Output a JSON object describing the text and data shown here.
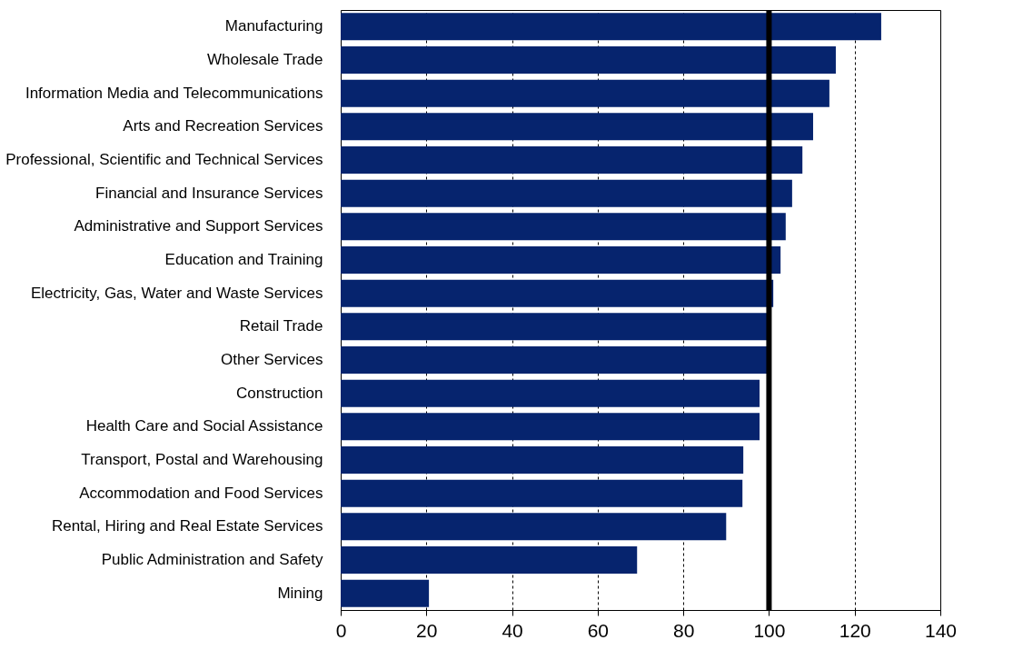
{
  "chart_data": {
    "type": "bar",
    "orientation": "horizontal",
    "categories": [
      "Manufacturing",
      "Wholesale Trade",
      "Information Media and Telecommunications",
      "Arts and Recreation Services",
      "Professional, Scientific and Technical Services",
      "Financial and Insurance Services",
      "Administrative and Support Services",
      "Education and Training",
      "Electricity, Gas, Water and Waste Services",
      "Retail Trade",
      "Other Services",
      "Construction",
      "Health Care and Social Assistance",
      "Transport, Postal and Warehousing",
      "Accommodation and Food Services",
      "Rental, Hiring and Real Estate Services",
      "Public Administration and Safety",
      "Mining"
    ],
    "values": [
      126.2,
      115.6,
      114.1,
      110.3,
      107.8,
      105.4,
      103.9,
      102.7,
      101,
      99.8,
      100,
      97.8,
      97.8,
      94,
      93.8,
      90,
      69.2,
      20.6
    ],
    "color": "#06246e",
    "xlim": [
      0,
      140
    ],
    "xticks": [
      0,
      20,
      40,
      60,
      80,
      100,
      120,
      140
    ],
    "grid": "x",
    "ref_lines": [
      {
        "axis": "x",
        "value": 100,
        "color": "#000000"
      }
    ]
  }
}
